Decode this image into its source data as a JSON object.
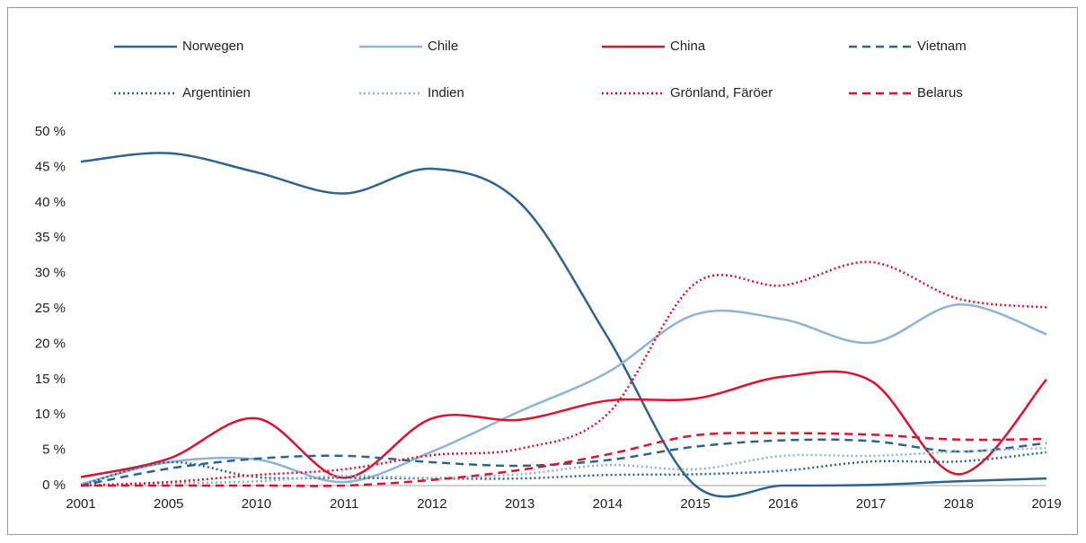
{
  "chart_data": {
    "type": "line",
    "categories": [
      "2001",
      "2005",
      "2010",
      "2011",
      "2012",
      "2013",
      "2014",
      "2015",
      "2016",
      "2017",
      "2018",
      "2019"
    ],
    "series": [
      {
        "name": "Norwegen",
        "color": "#2e6391",
        "style": "solid",
        "values": [
          45.8,
          47,
          44.3,
          41.3,
          44.8,
          40,
          21,
          0,
          0,
          0.1,
          0.6,
          1.0
        ]
      },
      {
        "name": "Chile",
        "color": "#8db4d8",
        "style": "solid",
        "values": [
          0.2,
          3.3,
          3.7,
          0.5,
          4.8,
          10.5,
          16,
          24.2,
          23.5,
          20.2,
          25.6,
          21.4
        ]
      },
      {
        "name": "China",
        "color": "#e0112b",
        "style": "solid",
        "values": [
          1.2,
          3.8,
          9.5,
          1.1,
          9.5,
          9.3,
          12,
          12.3,
          15.4,
          14.8,
          1.6,
          15
        ]
      },
      {
        "name": "Vietnam",
        "color": "#2e6391",
        "style": "dashed",
        "values": [
          0,
          2.4,
          3.8,
          4.2,
          3.3,
          2.8,
          3.6,
          5.5,
          6.4,
          6.3,
          4.8,
          6.0
        ]
      },
      {
        "name": "Argentinien",
        "color": "#2e6391",
        "style": "dotted",
        "values": [
          0,
          3.3,
          1.2,
          1.1,
          1.0,
          1.0,
          1.5,
          1.6,
          2.1,
          3.4,
          3.4,
          4.7
        ]
      },
      {
        "name": "Indien",
        "color": "#8db4d8",
        "style": "dotted",
        "values": [
          0,
          0.3,
          0.6,
          1.4,
          1.1,
          1.6,
          2.9,
          2.3,
          4.2,
          4.2,
          4.8,
          5.3
        ]
      },
      {
        "name": "Grönland, Färöer",
        "color": "#e0112b",
        "style": "dotted",
        "values": [
          0,
          0.5,
          1.5,
          2.3,
          4.3,
          5.2,
          10.1,
          28.6,
          28.3,
          31.6,
          26.4,
          25.2
        ]
      },
      {
        "name": "Belarus",
        "color": "#e0112b",
        "style": "dashed",
        "values": [
          0,
          0,
          0,
          0,
          0.8,
          2.2,
          4.4,
          7.1,
          7.4,
          7.2,
          6.5,
          6.6
        ]
      }
    ],
    "ylim": [
      0,
      50
    ],
    "yticks": [
      {
        "value": 0,
        "label": "0 %"
      },
      {
        "value": 5,
        "label": "5 %"
      },
      {
        "value": 10,
        "label": "10 %"
      },
      {
        "value": 15,
        "label": "15 %"
      },
      {
        "value": 20,
        "label": "20 %"
      },
      {
        "value": 25,
        "label": "25 %"
      },
      {
        "value": 30,
        "label": "30 %"
      },
      {
        "value": 35,
        "label": "35 %"
      },
      {
        "value": 40,
        "label": "40 %"
      },
      {
        "value": 45,
        "label": "45 %"
      },
      {
        "value": 50,
        "label": "50 %"
      }
    ],
    "legend": "top"
  }
}
